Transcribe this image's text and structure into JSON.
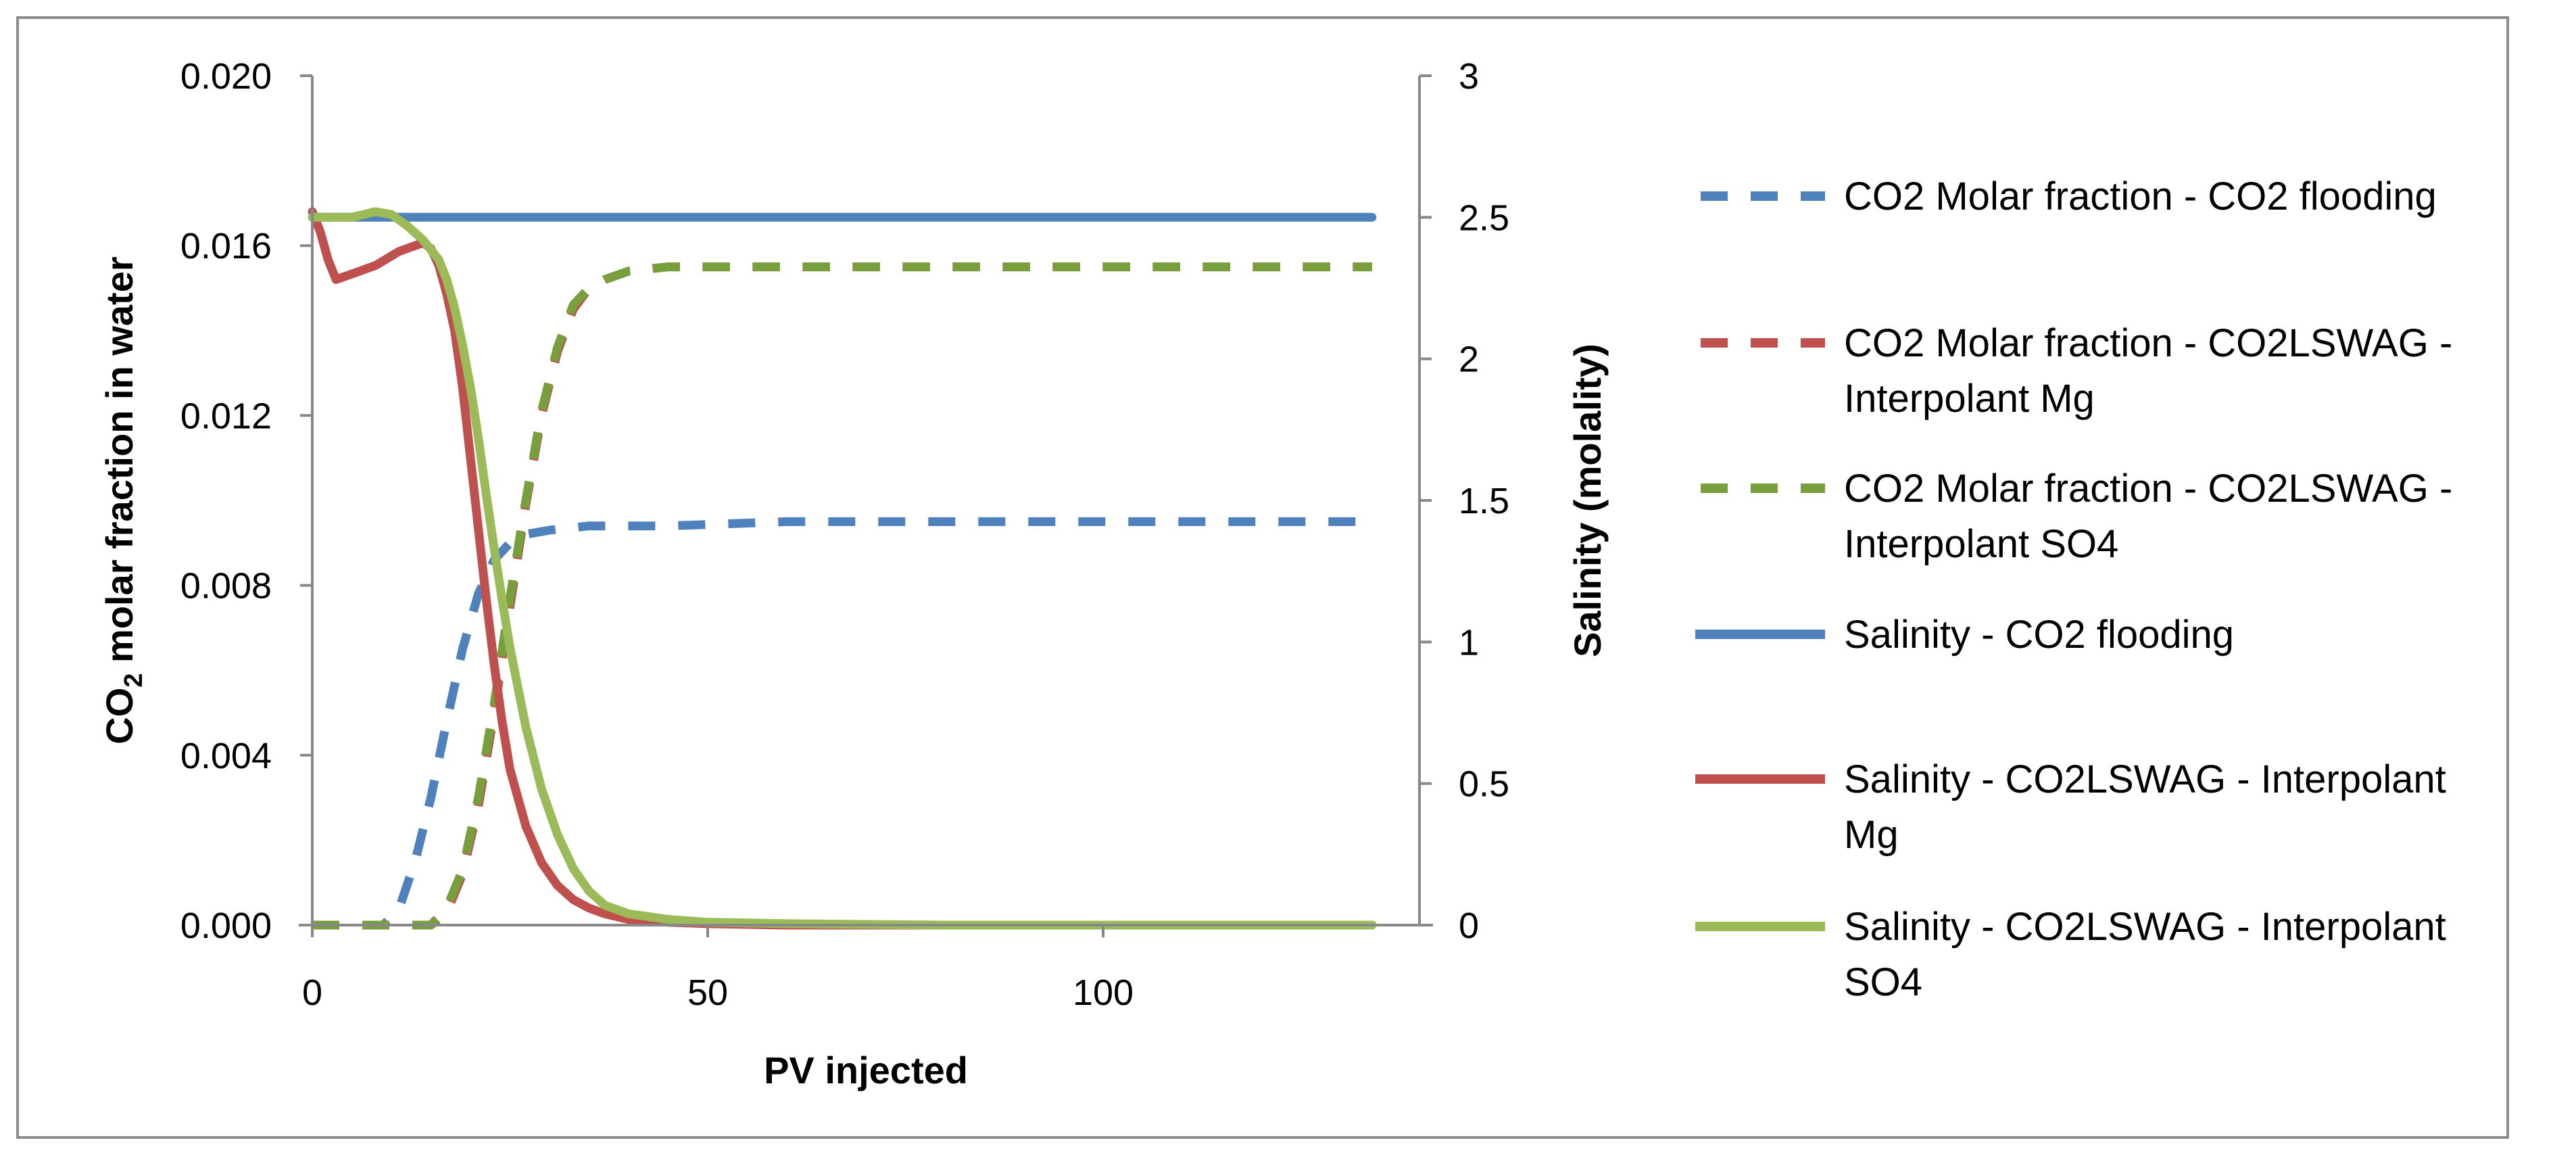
{
  "chart_data": {
    "type": "line",
    "xlabel": "PV injected",
    "ylabel_left_parts": [
      "CO",
      "2",
      " molar fraction  in water"
    ],
    "ylabel_right": "Salinity  (molality)",
    "xlim": [
      0,
      140
    ],
    "ylim_left": [
      0,
      0.02
    ],
    "ylim_right": [
      0,
      3
    ],
    "x_ticks": [
      "0",
      "50",
      "100"
    ],
    "x_tick_values": [
      0,
      50,
      100
    ],
    "y_left_ticks": [
      "0.000",
      "0.004",
      "0.008",
      "0.012",
      "0.016",
      "0.020"
    ],
    "y_left_tick_values": [
      0,
      0.004,
      0.008,
      0.012,
      0.016,
      0.02
    ],
    "y_right_ticks": [
      "0",
      "0.5",
      "1",
      "1.5",
      "2",
      "2.5",
      "3"
    ],
    "y_right_tick_values": [
      0,
      0.5,
      1,
      1.5,
      2,
      2.5,
      3
    ],
    "grid": false,
    "legend_position": "right",
    "series": [
      {
        "name": "CO2 Molar fraction - CO2 flooding",
        "axis": "left",
        "color": "#4f81bd",
        "style": "dashed",
        "x": [
          0,
          9,
          11,
          13,
          15,
          17,
          19,
          21,
          23,
          25,
          27,
          30,
          35,
          45,
          60,
          80,
          100,
          120,
          134
        ],
        "y": [
          0,
          0,
          0.0004,
          0.0015,
          0.003,
          0.0048,
          0.0065,
          0.0078,
          0.0086,
          0.009,
          0.0092,
          0.0093,
          0.0094,
          0.0094,
          0.0095,
          0.0095,
          0.0095,
          0.0095,
          0.0095
        ]
      },
      {
        "name": "CO2 Molar fraction - CO2LSWAG - Interpolant Mg",
        "axis": "left",
        "color": "#c0504d",
        "style": "dashed",
        "x": [
          0,
          15,
          17,
          19,
          21,
          23,
          25,
          27,
          29,
          31,
          33,
          35,
          37,
          40,
          45,
          60,
          80,
          100,
          120,
          134
        ],
        "y": [
          0,
          0,
          0.0003,
          0.0012,
          0.0028,
          0.005,
          0.0075,
          0.0099,
          0.012,
          0.0135,
          0.0145,
          0.015,
          0.0152,
          0.0154,
          0.0155,
          0.0155,
          0.0155,
          0.0155,
          0.0155,
          0.0155
        ]
      },
      {
        "name": "CO2 Molar fraction - CO2LSWAG - Interpolant SO4",
        "axis": "left",
        "color": "#77a03c",
        "style": "dashed",
        "x": [
          0,
          15,
          17,
          19,
          21,
          23,
          25,
          27,
          29,
          31,
          33,
          35,
          37,
          40,
          45,
          60,
          80,
          100,
          120,
          134
        ],
        "y": [
          0,
          0,
          0.0004,
          0.0013,
          0.003,
          0.0052,
          0.0077,
          0.01,
          0.0121,
          0.0136,
          0.0146,
          0.015,
          0.0152,
          0.0154,
          0.0155,
          0.0155,
          0.0155,
          0.0155,
          0.0155,
          0.0155
        ]
      },
      {
        "name": "Salinity - CO2 flooding",
        "axis": "right",
        "color": "#4f81bd",
        "style": "solid",
        "x": [
          0,
          134
        ],
        "y": [
          2.5,
          2.5
        ]
      },
      {
        "name": "Salinity - CO2LSWAG - Interpolant Mg",
        "axis": "right",
        "color": "#c0504d",
        "style": "solid",
        "x": [
          0,
          1,
          2,
          3,
          5,
          8,
          11,
          13,
          14,
          15,
          16,
          17,
          18,
          19,
          20,
          21,
          22,
          23,
          24,
          25,
          27,
          29,
          31,
          33,
          35,
          37,
          40,
          45,
          50,
          60,
          80,
          100,
          120,
          134
        ],
        "y": [
          2.52,
          2.45,
          2.35,
          2.28,
          2.3,
          2.33,
          2.38,
          2.4,
          2.41,
          2.39,
          2.33,
          2.23,
          2.1,
          1.9,
          1.65,
          1.4,
          1.15,
          0.92,
          0.72,
          0.55,
          0.35,
          0.22,
          0.14,
          0.09,
          0.06,
          0.04,
          0.02,
          0.01,
          0.005,
          0,
          0,
          0,
          0,
          0
        ]
      },
      {
        "name": "Salinity - CO2LSWAG - Interpolant SO4",
        "axis": "right",
        "color": "#9bbb59",
        "style": "solid",
        "x": [
          0,
          5,
          8,
          10,
          12,
          14,
          16,
          17,
          18,
          19,
          20,
          21,
          22,
          23,
          24,
          25,
          27,
          29,
          31,
          33,
          35,
          37,
          40,
          45,
          50,
          60,
          80,
          100,
          120,
          134
        ],
        "y": [
          2.5,
          2.5,
          2.52,
          2.51,
          2.47,
          2.42,
          2.35,
          2.28,
          2.18,
          2.05,
          1.9,
          1.72,
          1.52,
          1.33,
          1.15,
          0.98,
          0.7,
          0.48,
          0.32,
          0.2,
          0.12,
          0.07,
          0.04,
          0.02,
          0.01,
          0.005,
          0,
          0,
          0,
          0
        ]
      }
    ]
  },
  "legend": [
    {
      "lines": [
        "CO2 Molar fraction - CO2 flooding"
      ],
      "color": "#4f81bd",
      "style": "dashed"
    },
    {
      "lines": [
        "CO2 Molar fraction - CO2LSWAG -",
        "Interpolant Mg"
      ],
      "color": "#c0504d",
      "style": "dashed"
    },
    {
      "lines": [
        "CO2 Molar fraction - CO2LSWAG -",
        "Interpolant SO4"
      ],
      "color": "#77a03c",
      "style": "dashed"
    },
    {
      "lines": [
        "Salinity - CO2 flooding"
      ],
      "color": "#4f81bd",
      "style": "solid"
    },
    {
      "lines": [
        "Salinity - CO2LSWAG - Interpolant",
        "Mg"
      ],
      "color": "#c0504d",
      "style": "solid"
    },
    {
      "lines": [
        "Salinity - CO2LSWAG - Interpolant",
        "SO4"
      ],
      "color": "#9bbb59",
      "style": "solid"
    }
  ]
}
